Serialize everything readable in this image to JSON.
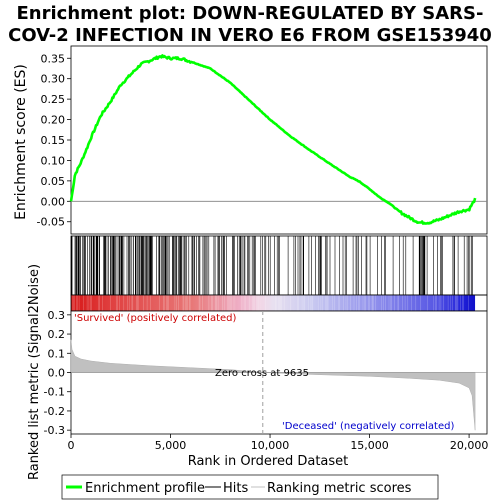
{
  "chart_data": {
    "type": "line",
    "title_lines": [
      "Enrichment plot: DOWN-REGULATED BY SARS-",
      "COV-2 INFECTION IN VERO E6 FROM GSE153940"
    ],
    "top_panel": {
      "ylabel": "Enrichment score (ES)",
      "ylim": [
        -0.08,
        0.38
      ],
      "yticks": [
        "0.35",
        "0.30",
        "0.25",
        "0.20",
        "0.15",
        "0.10",
        "0.05",
        "0.00",
        "-0.05"
      ],
      "ytick_values": [
        0.35,
        0.3,
        0.25,
        0.2,
        0.15,
        0.1,
        0.05,
        0.0,
        -0.05
      ],
      "series": [
        {
          "name": "Enrichment profile",
          "color": "#00ff00",
          "x": [
            0,
            200,
            500,
            800,
            1000,
            1500,
            2000,
            2500,
            3000,
            3500,
            4000,
            4500,
            5000,
            5500,
            6000,
            7000,
            8000,
            9000,
            10000,
            11000,
            12000,
            13000,
            14000,
            14500,
            15000,
            15500,
            16000,
            16500,
            17000,
            17500,
            18000,
            18500,
            19000,
            19500,
            20000,
            20300
          ],
          "y": [
            0.0,
            0.065,
            0.095,
            0.13,
            0.155,
            0.21,
            0.245,
            0.285,
            0.31,
            0.335,
            0.345,
            0.355,
            0.35,
            0.35,
            0.342,
            0.325,
            0.29,
            0.245,
            0.2,
            0.16,
            0.125,
            0.092,
            0.06,
            0.048,
            0.03,
            0.01,
            -0.005,
            -0.025,
            -0.04,
            -0.052,
            -0.052,
            -0.045,
            -0.035,
            -0.025,
            -0.02,
            0.005
          ]
        }
      ]
    },
    "bottom_panel": {
      "ylabel": "Ranked list metric (Signal2Noise)",
      "ylim": [
        -0.32,
        0.32
      ],
      "yticks": [
        "0.3",
        "0.2",
        "0.1",
        "0.0",
        "-0.1",
        "-0.2",
        "-0.3"
      ],
      "ytick_values": [
        0.3,
        0.2,
        0.1,
        0.0,
        -0.1,
        -0.2,
        -0.3
      ],
      "metric_curve": {
        "x": [
          0,
          50,
          200,
          500,
          1000,
          2000,
          4000,
          6000,
          8000,
          9635,
          12000,
          15000,
          17000,
          18500,
          19500,
          20000,
          20150,
          20300
        ],
        "y": [
          0.17,
          0.12,
          0.085,
          0.07,
          0.06,
          0.048,
          0.035,
          0.025,
          0.015,
          0.0,
          -0.01,
          -0.02,
          -0.03,
          -0.04,
          -0.055,
          -0.08,
          -0.12,
          -0.3
        ]
      },
      "zero_cross_label": "Zero cross at 9635",
      "zero_cross_rank": 9635,
      "positive_label": "'Survived' (positively correlated)",
      "negative_label": "'Deceased' (negatively correlated)"
    },
    "xlabel": "Rank in Ordered Dataset",
    "xlim": [
      0,
      20900
    ],
    "xticks": [
      "0",
      "5,000",
      "10,000",
      "15,000",
      "20,000"
    ],
    "xtick_values": [
      0,
      5000,
      10000,
      15000,
      20000
    ],
    "n_genes": 20300,
    "legend": {
      "placement": "bottom",
      "items": [
        "Enrichment profile",
        "Hits",
        "Ranking metric scores"
      ]
    },
    "colors": {
      "profile": "#00ff00",
      "hits": "#000000",
      "metric_fill": "#c0c0c0",
      "positive_text": "#cc0000",
      "negative_text": "#0000cc",
      "heat_red": "#e03030",
      "heat_blue": "#2020e0"
    }
  }
}
